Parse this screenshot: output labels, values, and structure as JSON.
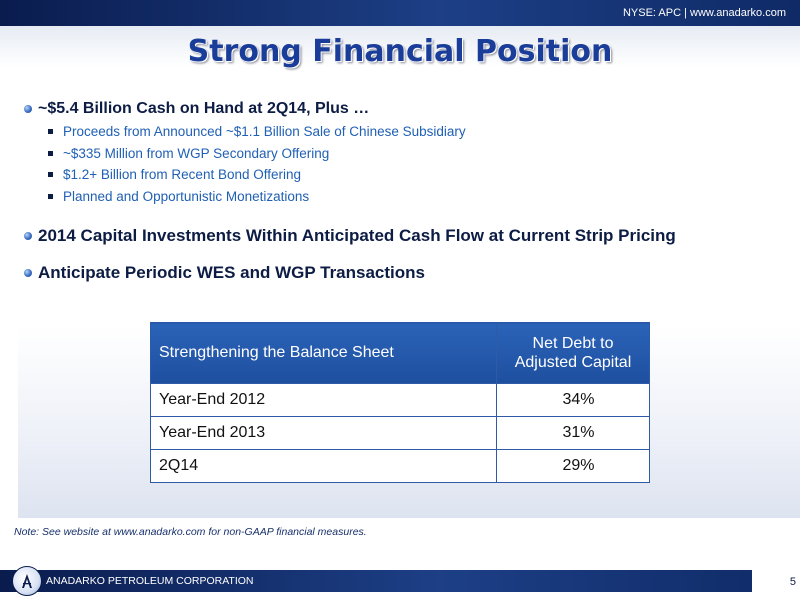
{
  "header": {
    "ticker": "NYSE: APC | www.anadarko.com"
  },
  "title": "Strong Financial Position",
  "bullets": [
    {
      "text": "~$5.4 Billion Cash on Hand at 2Q14, Plus …",
      "sub": [
        "Proceeds from Announced ~$1.1 Billion Sale of Chinese Subsidiary",
        "~$335 Million from WGP Secondary Offering",
        "$1.2+ Billion from Recent Bond Offering",
        "Planned and Opportunistic Monetizations"
      ]
    },
    {
      "text": "2014 Capital Investments Within Anticipated Cash Flow at Current Strip Pricing"
    },
    {
      "text": "Anticipate Periodic WES and WGP Transactions"
    }
  ],
  "table": {
    "col1_header": "Strengthening the Balance Sheet",
    "col2_header_line1": "Net Debt to",
    "col2_header_line2": "Adjusted Capital",
    "rows": [
      {
        "label": "Year-End 2012",
        "value": "34%"
      },
      {
        "label": "Year-End 2013",
        "value": "31%"
      },
      {
        "label": "2Q14",
        "value": "29%"
      }
    ]
  },
  "note": "Note: See website at www.anadarko.com for non-GAAP financial measures.",
  "footer": {
    "company": "ANADARKO PETROLEUM CORPORATION",
    "page": "5"
  }
}
